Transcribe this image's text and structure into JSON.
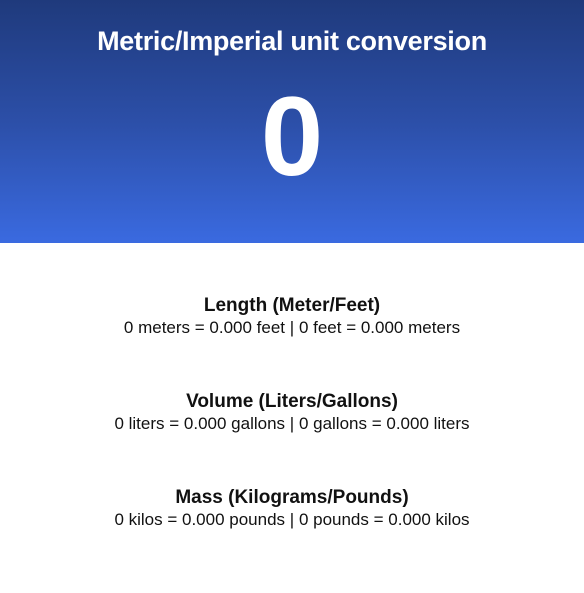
{
  "header": {
    "title": "Metric/Imperial unit conversion",
    "input_value": "0"
  },
  "sections": [
    {
      "heading": "Length (Meter/Feet)",
      "line_left": "0 meters = 0.000 feet",
      "separator": "|",
      "line_right": "0 feet = 0.000 meters"
    },
    {
      "heading": "Volume (Liters/Gallons)",
      "line_left": "0 liters = 0.000 gallons",
      "separator": "|",
      "line_right": "0 gallons = 0.000 liters"
    },
    {
      "heading": "Mass (Kilograms/Pounds)",
      "line_left": "0 kilos = 0.000 pounds",
      "separator": "|",
      "line_right": "0 pounds = 0.000 kilos"
    }
  ],
  "colors": {
    "hero_top": "#1f3a7c",
    "hero_bottom": "#3a6ae0",
    "text": "#111111"
  }
}
